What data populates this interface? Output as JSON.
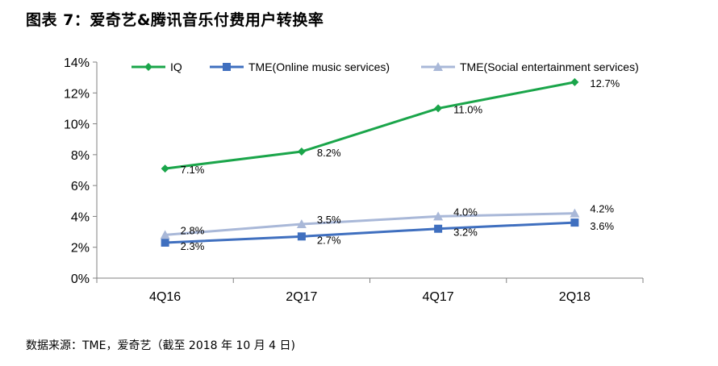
{
  "title": "图表 7：爱奇艺&腾讯音乐付费用户转换率",
  "source": "数据来源：TME，爱奇艺（截至 2018 年 10 月 4 日)",
  "chart_data": {
    "type": "line",
    "categories": [
      "4Q16",
      "2Q17",
      "4Q17",
      "2Q18"
    ],
    "ylim": [
      0,
      14
    ],
    "yticks": [
      0,
      2,
      4,
      6,
      8,
      10,
      12,
      14
    ],
    "ytick_labels": [
      "0%",
      "2%",
      "4%",
      "6%",
      "8%",
      "10%",
      "12%",
      "14%"
    ],
    "grid": false,
    "legend_position": "top",
    "series": [
      {
        "name": "IQ",
        "values": [
          7.1,
          8.2,
          11.0,
          12.7
        ],
        "labels": [
          "7.1%",
          "8.2%",
          "11.0%",
          "12.7%"
        ],
        "color": "#1aa54a",
        "marker": "diamond"
      },
      {
        "name": "TME(Online music services)",
        "values": [
          2.3,
          2.7,
          3.2,
          3.6
        ],
        "labels": [
          "2.3%",
          "2.7%",
          "3.2%",
          "3.6%"
        ],
        "color": "#3f6fbf",
        "marker": "square"
      },
      {
        "name": "TME(Social entertainment services)",
        "values": [
          2.8,
          3.5,
          4.0,
          4.2
        ],
        "labels": [
          "2.8%",
          "3.5%",
          "4.0%",
          "4.2%"
        ],
        "color": "#a9b8d8",
        "marker": "triangle"
      }
    ]
  }
}
